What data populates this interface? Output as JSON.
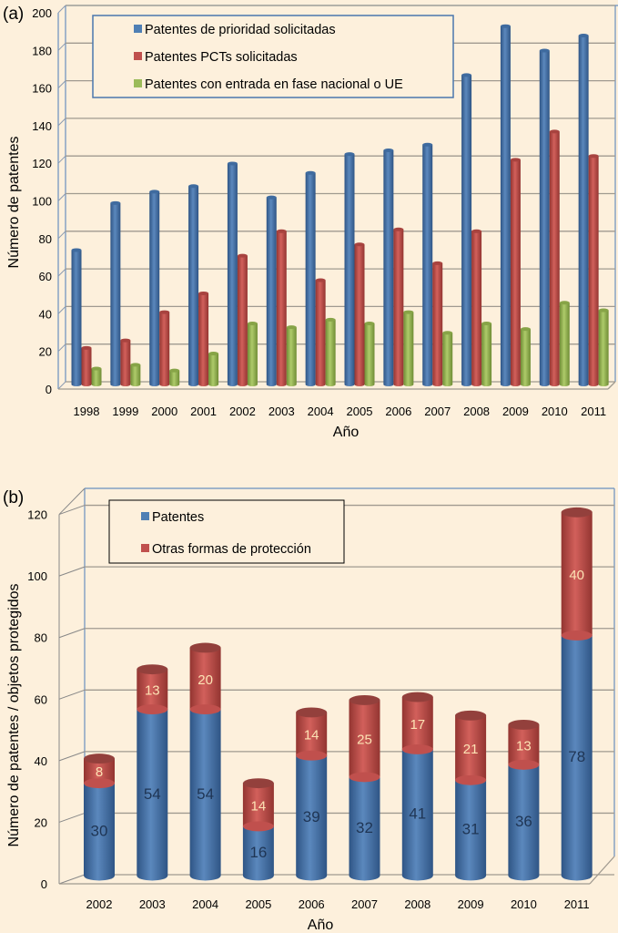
{
  "chart_data": [
    {
      "type": "bar",
      "panel_label": "(a)",
      "title": "",
      "xlabel": "Año",
      "ylabel": "Número de patentes",
      "ylim": [
        0,
        200
      ],
      "yticks": [
        "0",
        "20",
        "40",
        "60",
        "80",
        "100",
        "120",
        "140",
        "160",
        "180",
        "200"
      ],
      "grid": true,
      "legend_position": "top-left",
      "categories": [
        "1998",
        "1999",
        "2000",
        "2001",
        "2002",
        "2003",
        "2004",
        "2005",
        "2006",
        "2007",
        "2008",
        "2009",
        "2010",
        "2011"
      ],
      "series": [
        {
          "name": "Patentes de prioridad solicitadas",
          "color": "#4f7fb4",
          "values": [
            70,
            95,
            101,
            104,
            116,
            98,
            111,
            121,
            123,
            126,
            163,
            189,
            176,
            184
          ]
        },
        {
          "name": "Patentes PCTs solicitadas",
          "color": "#c0504d",
          "values": [
            18,
            22,
            37,
            47,
            67,
            80,
            54,
            73,
            81,
            63,
            80,
            118,
            133,
            120
          ]
        },
        {
          "name": "Patentes con entrada en fase nacional o UE",
          "color": "#9bbb59",
          "values": [
            7,
            9,
            6,
            15,
            31,
            29,
            33,
            31,
            37,
            26,
            31,
            28,
            42,
            38
          ]
        }
      ]
    },
    {
      "type": "bar",
      "stacked": true,
      "panel_label": "(b)",
      "title": "",
      "xlabel": "Año",
      "ylabel": "Número de patentes / objetos protegidos",
      "ylim": [
        0,
        120
      ],
      "yticks": [
        "0",
        "20",
        "40",
        "60",
        "80",
        "100",
        "120"
      ],
      "grid": true,
      "legend_position": "top-left",
      "categories": [
        "2002",
        "2003",
        "2004",
        "2005",
        "2006",
        "2007",
        "2008",
        "2009",
        "2010",
        "2011"
      ],
      "series": [
        {
          "name": "Patentes",
          "color": "#4f7fb4",
          "values": [
            30,
            54,
            54,
            16,
            39,
            32,
            41,
            31,
            36,
            78
          ],
          "labels": [
            "30",
            "54",
            "54",
            "16",
            "39",
            "32",
            "41",
            "31",
            "36",
            "78"
          ]
        },
        {
          "name": "Otras formas de protección",
          "color": "#c0504d",
          "values": [
            8,
            13,
            20,
            14,
            14,
            25,
            17,
            21,
            13,
            40
          ],
          "labels": [
            "8",
            "13",
            "20",
            "14",
            "14",
            "25",
            "17",
            "21",
            "13",
            "40"
          ]
        }
      ]
    }
  ]
}
